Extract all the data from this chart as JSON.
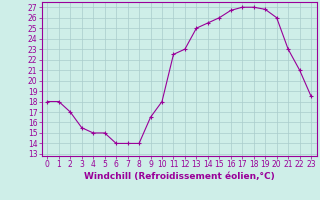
{
  "hours": [
    0,
    1,
    2,
    3,
    4,
    5,
    6,
    7,
    8,
    9,
    10,
    11,
    12,
    13,
    14,
    15,
    16,
    17,
    18,
    19,
    20,
    21,
    22,
    23
  ],
  "values": [
    18,
    18,
    17,
    15.5,
    15,
    15,
    14,
    14,
    14,
    16.5,
    18,
    22.5,
    23,
    25,
    25.5,
    26,
    26.7,
    27,
    27,
    26.8,
    26,
    23,
    21,
    18.5
  ],
  "line_color": "#990099",
  "marker": "+",
  "marker_size": 3,
  "bg_color": "#ceeee8",
  "grid_color": "#aacccc",
  "xlabel": "Windchill (Refroidissement éolien,°C)",
  "ylabel_ticks": [
    13,
    14,
    15,
    16,
    17,
    18,
    19,
    20,
    21,
    22,
    23,
    24,
    25,
    26,
    27
  ],
  "ylim": [
    12.8,
    27.5
  ],
  "xlim": [
    -0.5,
    23.5
  ],
  "tick_color": "#990099",
  "label_color": "#990099",
  "axis_color": "#990099",
  "tick_fontsize": 5.5,
  "xlabel_fontsize": 6.5
}
